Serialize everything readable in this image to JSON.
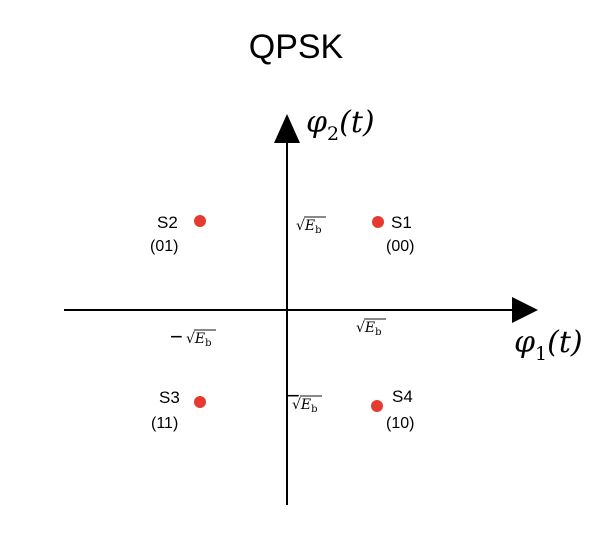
{
  "title": "QPSK",
  "axes": {
    "x_label": {
      "base": "φ",
      "subscript": "1",
      "arg": "(t)"
    },
    "y_label": {
      "base": "φ",
      "subscript": "2",
      "arg": "(t)"
    }
  },
  "tick_labels": {
    "radical": "√",
    "symbol": "E",
    "subscript": "b",
    "minus": "−"
  },
  "points": [
    {
      "name": "S1",
      "bits": "(00)",
      "color": "#e53a2f"
    },
    {
      "name": "S2",
      "bits": "(01)",
      "color": "#e53a2f"
    },
    {
      "name": "S3",
      "bits": "(11)",
      "color": "#e53a2f"
    },
    {
      "name": "S4",
      "bits": "(10)",
      "color": "#e53a2f"
    }
  ],
  "colors": {
    "axis": "#000000",
    "point": "#e53a2f",
    "text": "#111111"
  }
}
